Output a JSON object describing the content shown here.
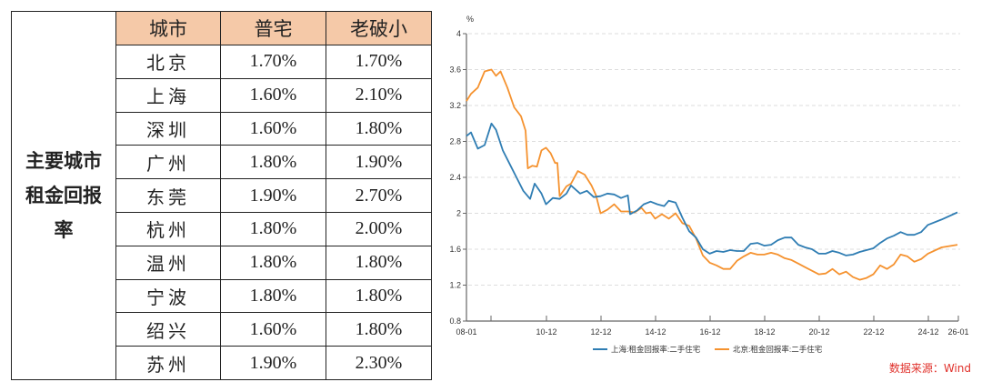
{
  "table": {
    "side_label": "主要城市租金回报率",
    "side_label_lines": [
      "主要城市",
      "租金回报",
      "率"
    ],
    "headers": [
      "城市",
      "普宅",
      "老破小"
    ],
    "rows": [
      {
        "city": "北京",
        "regular": "1.70%",
        "old_small": "1.70%"
      },
      {
        "city": "上海",
        "regular": "1.60%",
        "old_small": "2.10%"
      },
      {
        "city": "深圳",
        "regular": "1.60%",
        "old_small": "1.80%"
      },
      {
        "city": "广州",
        "regular": "1.80%",
        "old_small": "1.90%"
      },
      {
        "city": "东莞",
        "regular": "1.90%",
        "old_small": "2.70%"
      },
      {
        "city": "杭州",
        "regular": "1.80%",
        "old_small": "2.00%"
      },
      {
        "city": "温州",
        "regular": "1.80%",
        "old_small": "1.80%"
      },
      {
        "city": "宁波",
        "regular": "1.80%",
        "old_small": "1.80%"
      },
      {
        "city": "绍兴",
        "regular": "1.60%",
        "old_small": "1.80%"
      },
      {
        "city": "苏州",
        "regular": "1.90%",
        "old_small": "2.30%"
      }
    ],
    "header_color": "#f5c9a8"
  },
  "source_text": "数据来源：Wind",
  "chart_data": {
    "type": "line",
    "title": "",
    "ylabel": "%",
    "xlabel": "",
    "ylim": [
      0.8,
      4
    ],
    "yticks": [
      "4",
      "3.6",
      "3.2",
      "2.8",
      "2.4",
      "2",
      "1.6",
      "1.2",
      "0.8"
    ],
    "xticks": [
      "08-01",
      "10-12",
      "12-12",
      "14-12",
      "16-12",
      "18-12",
      "20-12",
      "22-12",
      "24-12",
      "26-01"
    ],
    "grid": "horizontal dashed",
    "legend_position": "bottom",
    "series": [
      {
        "name": "上海:租金回报率:二手住宅",
        "color": "#2f7db3",
        "points": [
          [
            "08-01",
            2.86
          ],
          [
            "08-03",
            2.9
          ],
          [
            "08-06",
            2.72
          ],
          [
            "08-09",
            2.76
          ],
          [
            "08-12",
            3.0
          ],
          [
            "09-02",
            2.93
          ],
          [
            "09-05",
            2.7
          ],
          [
            "09-08",
            2.55
          ],
          [
            "09-11",
            2.4
          ],
          [
            "10-02",
            2.25
          ],
          [
            "10-05",
            2.16
          ],
          [
            "10-07",
            2.33
          ],
          [
            "10-10",
            2.22
          ],
          [
            "10-12",
            2.1
          ],
          [
            "11-03",
            2.17
          ],
          [
            "11-06",
            2.16
          ],
          [
            "11-09",
            2.22
          ],
          [
            "11-11",
            2.31
          ],
          [
            "12-03",
            2.22
          ],
          [
            "12-06",
            2.25
          ],
          [
            "12-09",
            2.18
          ],
          [
            "12-12",
            2.19
          ],
          [
            "13-03",
            2.22
          ],
          [
            "13-06",
            2.21
          ],
          [
            "13-09",
            2.17
          ],
          [
            "13-12",
            2.2
          ],
          [
            "14-01",
            1.99
          ],
          [
            "14-04",
            2.03
          ],
          [
            "14-07",
            2.1
          ],
          [
            "14-10",
            2.13
          ],
          [
            "15-01",
            2.1
          ],
          [
            "15-04",
            2.08
          ],
          [
            "15-06",
            2.14
          ],
          [
            "15-09",
            2.12
          ],
          [
            "15-12",
            1.95
          ],
          [
            "16-03",
            1.8
          ],
          [
            "16-06",
            1.73
          ],
          [
            "16-09",
            1.6
          ],
          [
            "16-12",
            1.55
          ],
          [
            "17-03",
            1.58
          ],
          [
            "17-06",
            1.57
          ],
          [
            "17-09",
            1.59
          ],
          [
            "17-12",
            1.58
          ],
          [
            "18-03",
            1.58
          ],
          [
            "18-06",
            1.66
          ],
          [
            "18-09",
            1.67
          ],
          [
            "18-12",
            1.64
          ],
          [
            "19-03",
            1.65
          ],
          [
            "19-06",
            1.7
          ],
          [
            "19-09",
            1.73
          ],
          [
            "19-12",
            1.73
          ],
          [
            "20-03",
            1.65
          ],
          [
            "20-06",
            1.62
          ],
          [
            "20-09",
            1.6
          ],
          [
            "20-12",
            1.55
          ],
          [
            "21-03",
            1.55
          ],
          [
            "21-06",
            1.58
          ],
          [
            "21-09",
            1.56
          ],
          [
            "21-12",
            1.53
          ],
          [
            "22-03",
            1.54
          ],
          [
            "22-06",
            1.57
          ],
          [
            "22-09",
            1.59
          ],
          [
            "22-12",
            1.61
          ],
          [
            "23-03",
            1.67
          ],
          [
            "23-06",
            1.72
          ],
          [
            "23-09",
            1.75
          ],
          [
            "23-12",
            1.79
          ],
          [
            "24-03",
            1.76
          ],
          [
            "24-06",
            1.76
          ],
          [
            "24-09",
            1.79
          ],
          [
            "24-12",
            1.87
          ],
          [
            "25-06",
            1.93
          ],
          [
            "26-01",
            2.01
          ]
        ]
      },
      {
        "name": "北京:租金回报率:二手住宅",
        "color": "#f5922f",
        "points": [
          [
            "08-01",
            3.25
          ],
          [
            "08-03",
            3.33
          ],
          [
            "08-06",
            3.4
          ],
          [
            "08-09",
            3.58
          ],
          [
            "08-12",
            3.6
          ],
          [
            "09-02",
            3.53
          ],
          [
            "09-04",
            3.58
          ],
          [
            "09-07",
            3.4
          ],
          [
            "09-10",
            3.18
          ],
          [
            "10-01",
            3.08
          ],
          [
            "10-03",
            2.92
          ],
          [
            "10-04",
            2.5
          ],
          [
            "10-06",
            2.53
          ],
          [
            "10-08",
            2.52
          ],
          [
            "10-10",
            2.7
          ],
          [
            "10-12",
            2.73
          ],
          [
            "11-02",
            2.67
          ],
          [
            "11-04",
            2.56
          ],
          [
            "11-05",
            2.56
          ],
          [
            "11-06",
            2.19
          ],
          [
            "11-09",
            2.3
          ],
          [
            "11-11",
            2.33
          ],
          [
            "12-02",
            2.47
          ],
          [
            "12-05",
            2.43
          ],
          [
            "12-08",
            2.31
          ],
          [
            "12-10",
            2.2
          ],
          [
            "12-12",
            2.0
          ],
          [
            "13-03",
            2.04
          ],
          [
            "13-06",
            2.1
          ],
          [
            "13-09",
            2.02
          ],
          [
            "13-12",
            2.02
          ],
          [
            "14-03",
            2.01
          ],
          [
            "14-06",
            2.06
          ],
          [
            "14-08",
            2.0
          ],
          [
            "14-10",
            2.01
          ],
          [
            "14-12",
            1.94
          ],
          [
            "15-03",
            1.99
          ],
          [
            "15-06",
            1.94
          ],
          [
            "15-09",
            2.0
          ],
          [
            "15-12",
            1.89
          ],
          [
            "16-03",
            1.86
          ],
          [
            "16-06",
            1.72
          ],
          [
            "16-09",
            1.53
          ],
          [
            "16-12",
            1.45
          ],
          [
            "17-03",
            1.42
          ],
          [
            "17-06",
            1.38
          ],
          [
            "17-09",
            1.38
          ],
          [
            "17-12",
            1.47
          ],
          [
            "18-03",
            1.52
          ],
          [
            "18-06",
            1.56
          ],
          [
            "18-09",
            1.54
          ],
          [
            "18-12",
            1.54
          ],
          [
            "19-03",
            1.56
          ],
          [
            "19-06",
            1.54
          ],
          [
            "19-09",
            1.5
          ],
          [
            "19-12",
            1.48
          ],
          [
            "20-03",
            1.44
          ],
          [
            "20-06",
            1.4
          ],
          [
            "20-09",
            1.36
          ],
          [
            "20-12",
            1.32
          ],
          [
            "21-03",
            1.33
          ],
          [
            "21-06",
            1.38
          ],
          [
            "21-09",
            1.32
          ],
          [
            "21-12",
            1.35
          ],
          [
            "22-03",
            1.29
          ],
          [
            "22-06",
            1.26
          ],
          [
            "22-09",
            1.28
          ],
          [
            "22-12",
            1.32
          ],
          [
            "23-03",
            1.42
          ],
          [
            "23-06",
            1.38
          ],
          [
            "23-09",
            1.43
          ],
          [
            "23-12",
            1.54
          ],
          [
            "24-03",
            1.52
          ],
          [
            "24-06",
            1.46
          ],
          [
            "24-09",
            1.49
          ],
          [
            "24-12",
            1.55
          ],
          [
            "25-06",
            1.62
          ],
          [
            "26-01",
            1.65
          ]
        ]
      }
    ]
  }
}
